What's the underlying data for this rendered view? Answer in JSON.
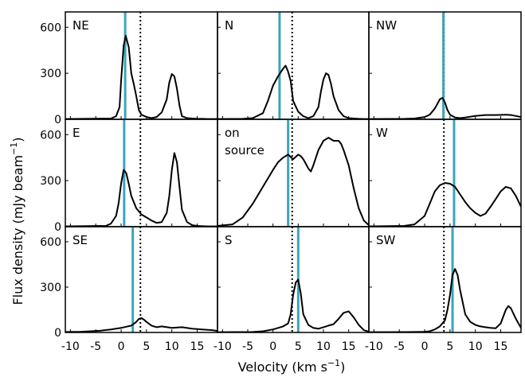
{
  "chart_data": {
    "type": "line",
    "xlabel": "Velocity (km s",
    "xlabel_exponent": "−1",
    "xlabel_close": ")",
    "ylabel": "Flux density (mJy beam",
    "ylabel_exponent": "−1",
    "ylabel_close": ")",
    "xlim": [
      -11,
      19
    ],
    "ylim": [
      0,
      700
    ],
    "xticks": [
      -10,
      -5,
      0,
      5,
      10,
      15
    ],
    "xtick_labels": [
      "-10",
      "-5",
      "0",
      "5",
      "10",
      "15"
    ],
    "yticks": [
      0,
      300,
      600
    ],
    "ytick_labels": [
      "0",
      "300",
      "600"
    ],
    "reference_line": {
      "x": 3.8,
      "style": "dotted",
      "color": "#000000"
    },
    "marker_color": "#3aa6b9",
    "line_color": "#000000",
    "panels": [
      {
        "label": "NE",
        "marker_x": 0.8,
        "x": [
          -11,
          -2,
          -1,
          -0.3,
          0,
          0.5,
          0.9,
          1.5,
          2,
          2.5,
          3,
          3.5,
          4,
          5,
          6,
          7,
          8,
          9,
          9.5,
          10,
          10.5,
          11,
          11.5,
          12,
          13,
          14,
          15,
          16,
          17,
          18,
          19
        ],
        "y": [
          2,
          5,
          20,
          80,
          250,
          480,
          545,
          470,
          300,
          230,
          150,
          60,
          30,
          15,
          8,
          15,
          45,
          130,
          240,
          295,
          280,
          200,
          90,
          20,
          8,
          5,
          3,
          3,
          2,
          2,
          2
        ]
      },
      {
        "label": "N",
        "marker_x": 1.3,
        "x": [
          -11,
          -6,
          -4,
          -2,
          -1,
          0,
          1,
          2,
          2.5,
          3,
          3.5,
          4,
          5,
          6,
          7,
          8,
          9,
          9.5,
          10,
          10.5,
          11,
          11.5,
          12,
          13,
          14,
          15,
          16,
          17,
          18,
          19
        ],
        "y": [
          2,
          3,
          8,
          40,
          120,
          220,
          280,
          330,
          350,
          310,
          250,
          120,
          50,
          20,
          8,
          20,
          80,
          180,
          260,
          300,
          290,
          230,
          150,
          60,
          20,
          8,
          5,
          3,
          2,
          2
        ]
      },
      {
        "label": "NW",
        "marker_x": 3.7,
        "x": [
          -11,
          -4,
          -2,
          0,
          1,
          2,
          3,
          3.5,
          4,
          4.5,
          5,
          6,
          7,
          8,
          10,
          12,
          14,
          16,
          17,
          18,
          19
        ],
        "y": [
          2,
          3,
          5,
          15,
          30,
          70,
          130,
          140,
          110,
          60,
          30,
          12,
          8,
          12,
          22,
          28,
          28,
          30,
          28,
          22,
          15
        ]
      },
      {
        "label": "E",
        "marker_x": 0.6,
        "x": [
          -11,
          -3,
          -2,
          -1,
          -0.5,
          0,
          0.5,
          1,
          1.5,
          2,
          3,
          4,
          5,
          6,
          7,
          8,
          9,
          9.5,
          10,
          10.5,
          11,
          11.5,
          12,
          13,
          14,
          15,
          16,
          17,
          18,
          19
        ],
        "y": [
          2,
          5,
          20,
          70,
          150,
          280,
          370,
          350,
          280,
          200,
          120,
          80,
          60,
          40,
          25,
          30,
          90,
          200,
          370,
          480,
          420,
          260,
          110,
          30,
          10,
          5,
          3,
          2,
          2,
          2
        ]
      },
      {
        "label": "on source",
        "marker_x": 3.0,
        "x": [
          -11,
          -8,
          -6,
          -4,
          -2,
          0,
          1,
          2,
          3,
          4,
          5,
          5.5,
          6,
          7,
          7.5,
          8,
          9,
          10,
          11,
          12,
          13,
          13.5,
          14,
          15,
          16,
          17,
          18,
          19
        ],
        "y": [
          5,
          15,
          60,
          150,
          260,
          370,
          420,
          450,
          470,
          440,
          470,
          460,
          440,
          380,
          360,
          400,
          500,
          560,
          580,
          560,
          560,
          540,
          500,
          400,
          250,
          120,
          40,
          10
        ]
      },
      {
        "label": "W",
        "marker_x": 5.8,
        "x": [
          -11,
          -4,
          -2,
          0,
          1,
          2,
          3,
          4,
          5,
          6,
          7,
          8,
          9,
          10,
          11,
          12,
          13,
          14,
          15,
          16,
          17,
          18,
          19
        ],
        "y": [
          2,
          5,
          15,
          70,
          150,
          230,
          270,
          285,
          280,
          260,
          210,
          160,
          120,
          90,
          70,
          85,
          130,
          180,
          230,
          260,
          250,
          200,
          130
        ]
      },
      {
        "label": "SE",
        "marker_x": 2.3,
        "x": [
          -11,
          -8,
          -6,
          -4,
          -2,
          0,
          1,
          2,
          3,
          3.5,
          4,
          4.5,
          5,
          6,
          7,
          8,
          10,
          12,
          14,
          16,
          18,
          19
        ],
        "y": [
          3,
          5,
          8,
          12,
          20,
          30,
          38,
          45,
          70,
          90,
          95,
          85,
          70,
          45,
          35,
          40,
          30,
          35,
          25,
          20,
          15,
          10
        ]
      },
      {
        "label": "S",
        "marker_x": 5.0,
        "x": [
          -11,
          -4,
          -2,
          0,
          1,
          2,
          3,
          3.5,
          4,
          4.5,
          5,
          5.5,
          6,
          7,
          8,
          9,
          10,
          11,
          12,
          13,
          14,
          15,
          16,
          17,
          18,
          19
        ],
        "y": [
          2,
          3,
          8,
          20,
          30,
          40,
          60,
          120,
          250,
          330,
          350,
          260,
          120,
          50,
          30,
          25,
          35,
          45,
          55,
          90,
          130,
          140,
          100,
          50,
          15,
          5
        ]
      },
      {
        "label": "SW",
        "marker_x": 5.5,
        "x": [
          -11,
          -2,
          0,
          1,
          2,
          3,
          4,
          4.5,
          5,
          5.5,
          6,
          6.5,
          7,
          8,
          9,
          10,
          11,
          12,
          13,
          14,
          15,
          16,
          16.5,
          17,
          18,
          19
        ],
        "y": [
          2,
          3,
          5,
          8,
          20,
          40,
          80,
          150,
          250,
          380,
          420,
          380,
          280,
          120,
          70,
          50,
          40,
          35,
          30,
          28,
          60,
          150,
          175,
          160,
          90,
          30
        ]
      }
    ]
  }
}
